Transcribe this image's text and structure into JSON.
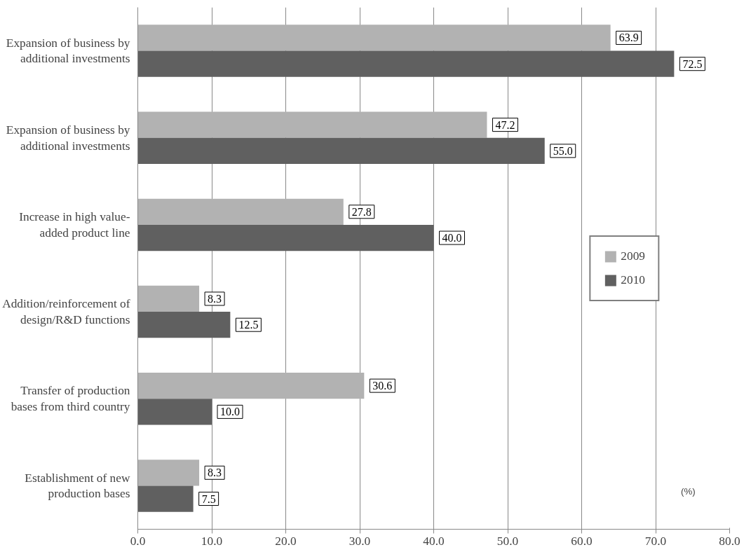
{
  "chart_data": {
    "type": "bar",
    "orientation": "horizontal",
    "categories": [
      "Expansion of business by\nadditional investments",
      "Expansion of business by\nadditional investments",
      "Increase in high value-\nadded product line",
      "Addition/reinforcement of\ndesign/R&D functions",
      "Transfer of production\nbases from third country",
      "Establishment of new\nproduction bases"
    ],
    "series": [
      {
        "name": "2009",
        "color": "#b2b2b2",
        "values": [
          63.9,
          47.2,
          27.8,
          8.3,
          30.6,
          8.3
        ],
        "value_labels": [
          "63.9",
          "47.2",
          "27.8",
          "8.3",
          "30.6",
          "8.3"
        ]
      },
      {
        "name": "2010",
        "color": "#606060",
        "values": [
          72.5,
          55.0,
          40.0,
          12.5,
          10.0,
          7.5
        ],
        "value_labels": [
          "72.5",
          "55.0",
          "40.0",
          "12.5",
          "10.0",
          "7.5"
        ]
      }
    ],
    "xlim": [
      0,
      80
    ],
    "xticks": [
      {
        "value": 0,
        "label": "0.0"
      },
      {
        "value": 10,
        "label": "10.0"
      },
      {
        "value": 20,
        "label": "20.0"
      },
      {
        "value": 30,
        "label": "30.0"
      },
      {
        "value": 40,
        "label": "40.0"
      },
      {
        "value": 50,
        "label": "50.0"
      },
      {
        "value": 60,
        "label": "60.0"
      },
      {
        "value": 70,
        "label": "70.0"
      },
      {
        "value": 80,
        "label": "80.0"
      }
    ],
    "grid": "x",
    "legend": "right",
    "annotations": [
      "(%)"
    ]
  }
}
